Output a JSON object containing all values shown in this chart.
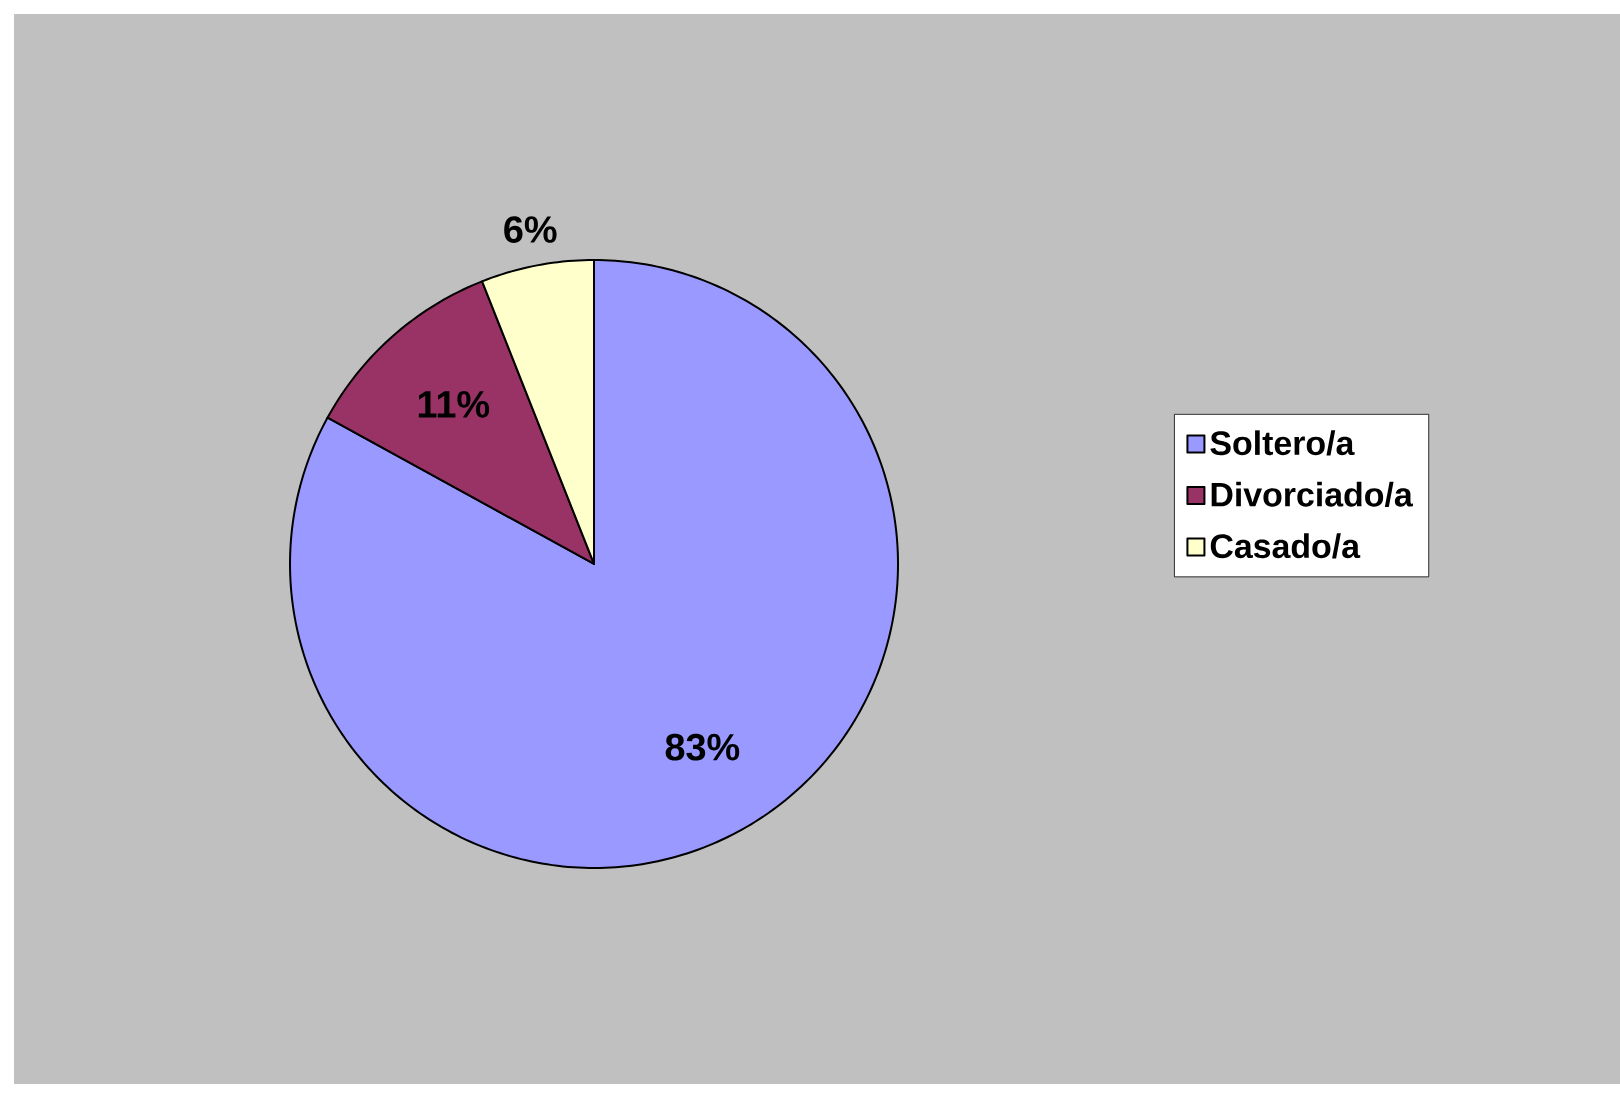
{
  "chart_data": {
    "type": "pie",
    "categories": [
      "Soltero/a",
      "Divorciado/a",
      "Casado/a"
    ],
    "values": [
      83,
      11,
      6
    ],
    "value_labels": [
      "83%",
      "11%",
      "6%"
    ],
    "colors": [
      "#9999ff",
      "#993366",
      "#ffffcc"
    ],
    "legend": "right"
  }
}
